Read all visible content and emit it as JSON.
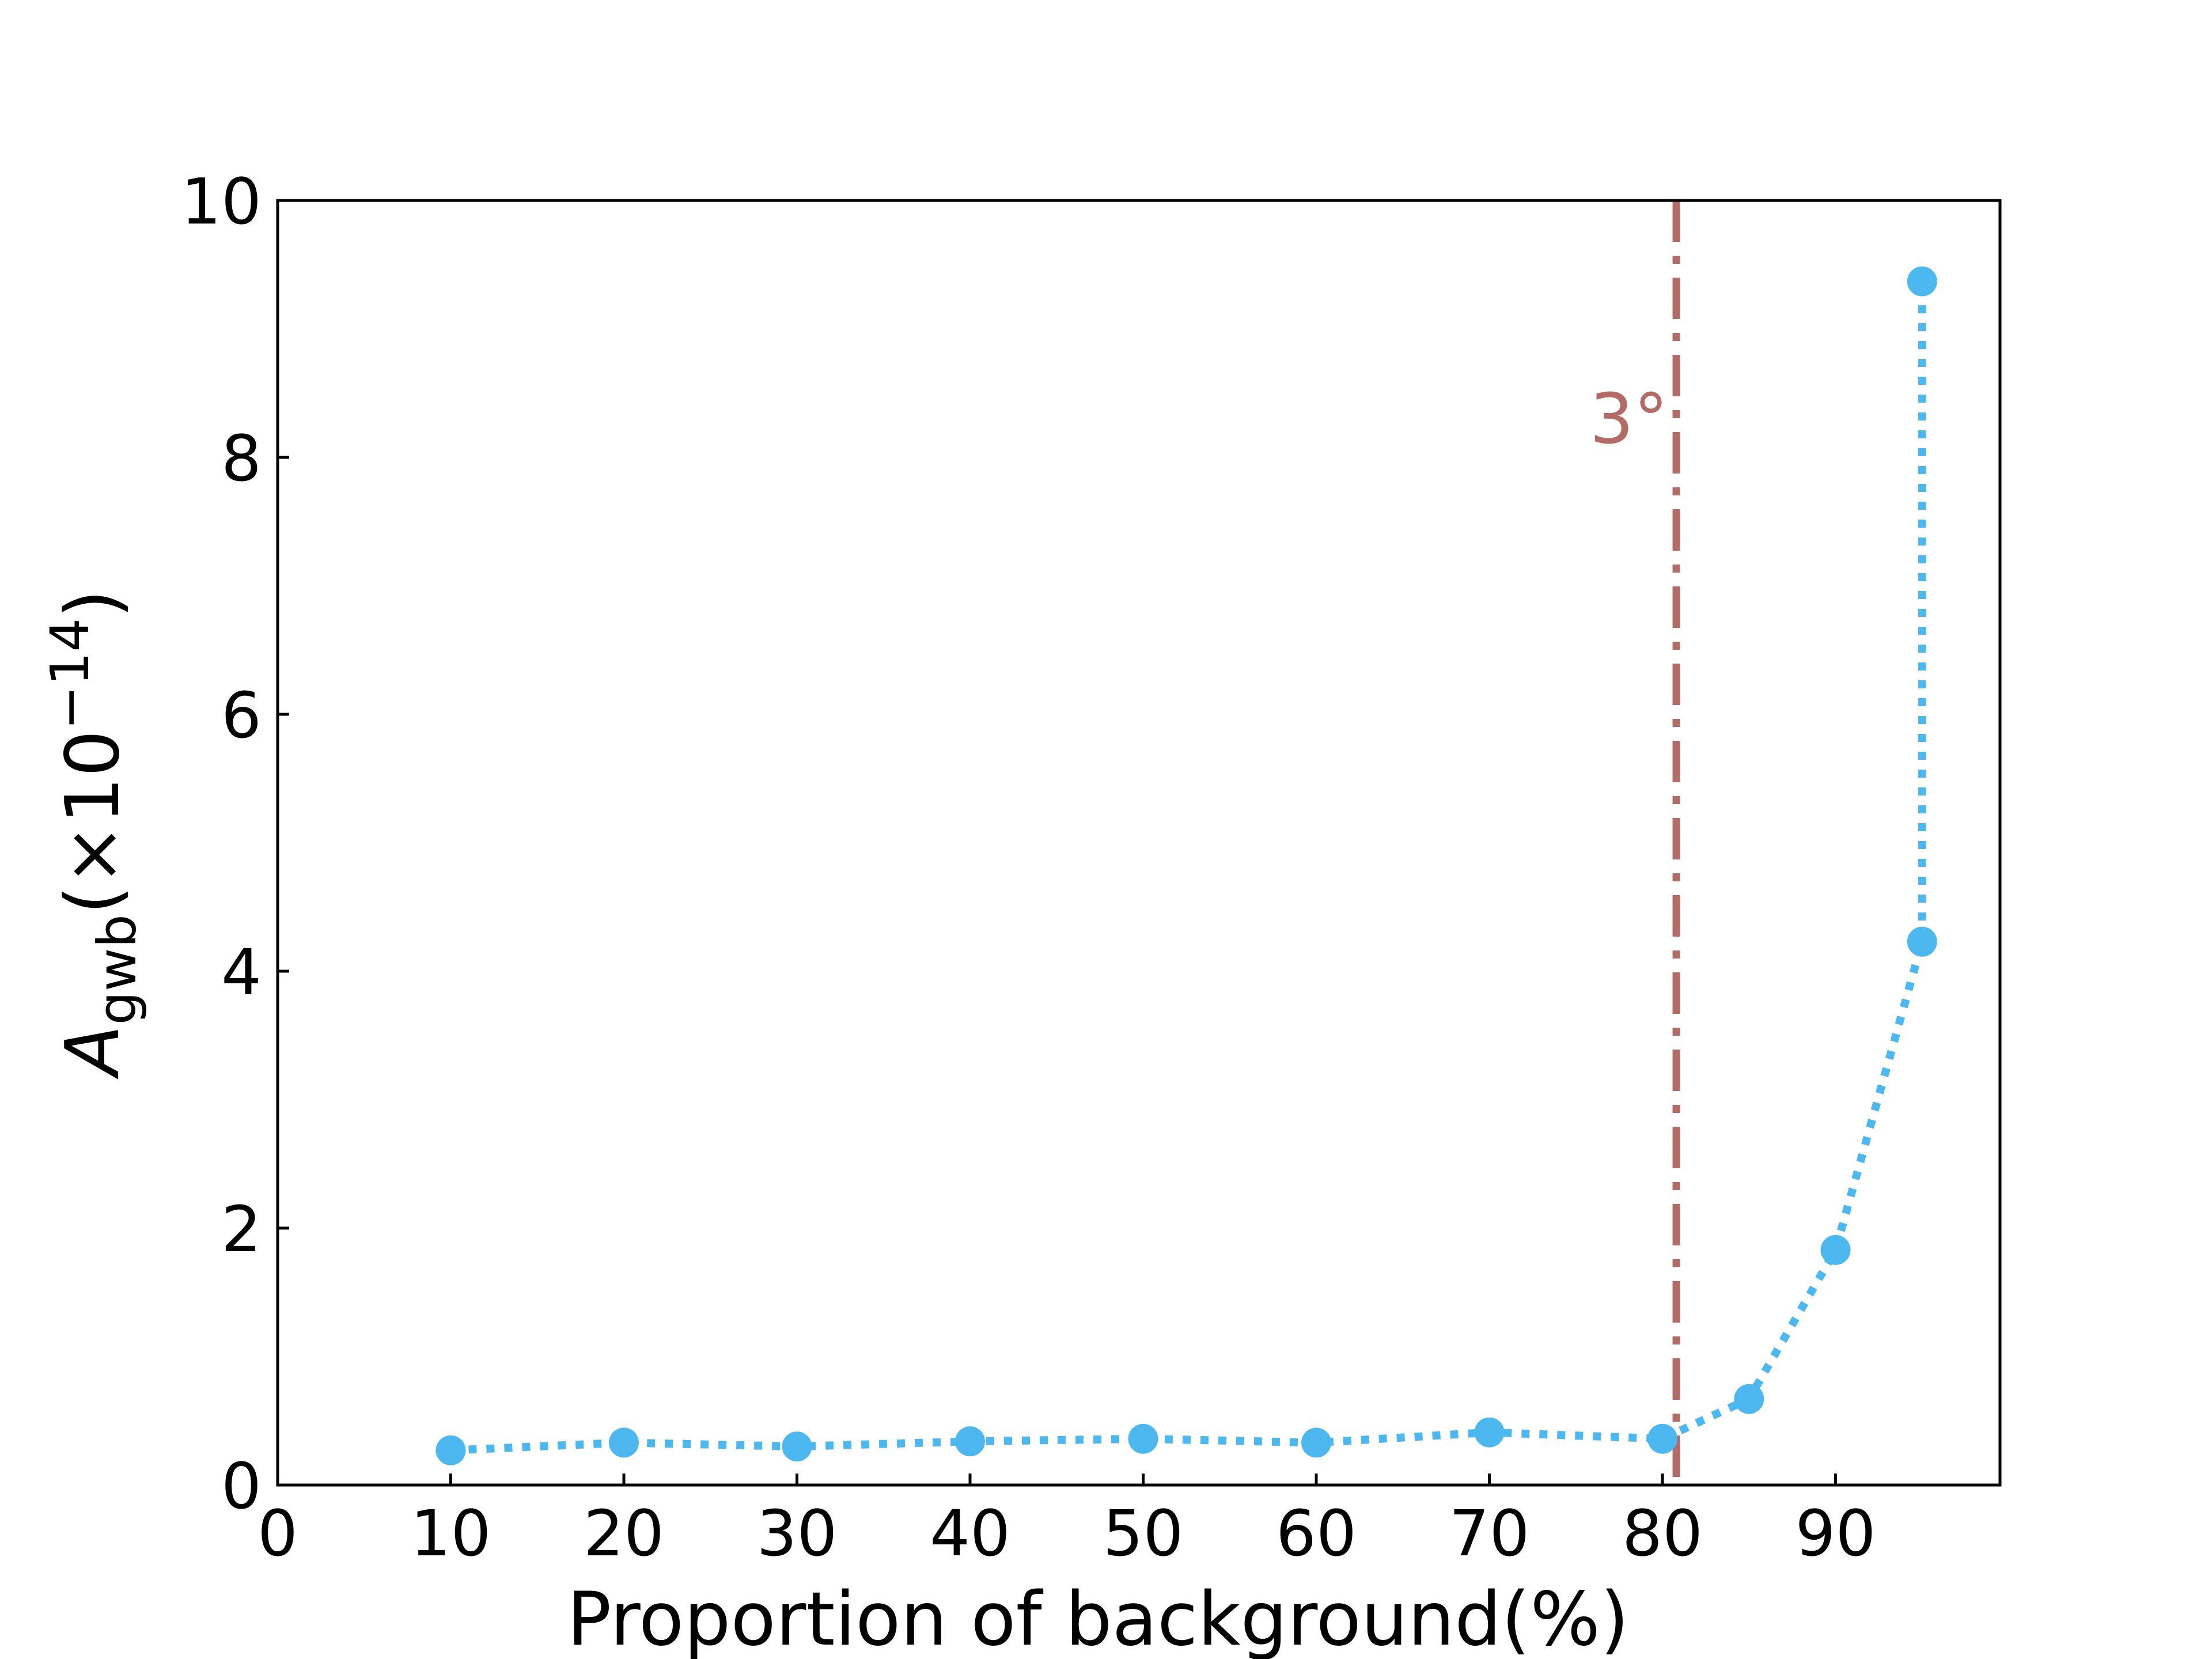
{
  "chart_data": {
    "type": "line",
    "xlabel": "Proportion of background(%)",
    "ylabel": {
      "main": "A",
      "subscript": "gwb",
      "suffix": "(×10",
      "exponent": "−14",
      "close": ")"
    },
    "xlim": [
      0,
      99.5
    ],
    "ylim": [
      0,
      10
    ],
    "xticks": [
      0,
      10,
      20,
      30,
      40,
      50,
      60,
      70,
      80,
      90
    ],
    "yticks": [
      0,
      2,
      4,
      6,
      8,
      10
    ],
    "grid": false,
    "series": [
      {
        "x": [
          10,
          20,
          30,
          40,
          50,
          60,
          70,
          80,
          85,
          90,
          95,
          95
        ],
        "y": [
          0.27,
          0.33,
          0.3,
          0.34,
          0.36,
          0.33,
          0.41,
          0.36,
          0.67,
          1.83,
          4.23,
          9.37
        ],
        "color": "#4db8f0",
        "line_style": "dotted",
        "marker": "circle"
      }
    ],
    "annotations": [
      {
        "type": "vertical-line",
        "x": 80.8,
        "color": "#b36b66",
        "line_style": "dash-dot",
        "label": "3°",
        "label_y": 8.3
      }
    ]
  }
}
